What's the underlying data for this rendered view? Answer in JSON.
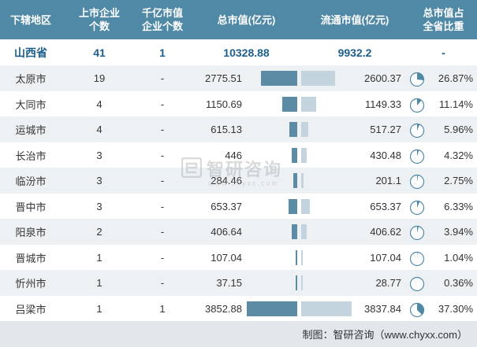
{
  "headers": [
    "下辖地区",
    "上市企业\n个数",
    "千亿市值\n企业个数",
    "总市值(亿元)",
    "流通市值(亿元)",
    "总市值占\n全省比重"
  ],
  "summary": {
    "region": "山西省",
    "listed": "41",
    "hundred_billion": "1",
    "total": "10328.88",
    "floating": "9932.2",
    "share": "-"
  },
  "rows": [
    {
      "region": "太原市",
      "listed": "19",
      "hundred_billion": "-",
      "total": "2775.51",
      "floating": "2600.37",
      "share": "26.87%"
    },
    {
      "region": "大同市",
      "listed": "4",
      "hundred_billion": "-",
      "total": "1150.69",
      "floating": "1149.33",
      "share": "11.14%"
    },
    {
      "region": "运城市",
      "listed": "4",
      "hundred_billion": "-",
      "total": "615.13",
      "floating": "517.27",
      "share": "5.96%"
    },
    {
      "region": "长治市",
      "listed": "3",
      "hundred_billion": "-",
      "total": "446",
      "floating": "430.48",
      "share": "4.32%"
    },
    {
      "region": "临汾市",
      "listed": "3",
      "hundred_billion": "-",
      "total": "284.46",
      "floating": "201.1",
      "share": "2.75%"
    },
    {
      "region": "晋中市",
      "listed": "3",
      "hundred_billion": "-",
      "total": "653.37",
      "floating": "653.37",
      "share": "6.33%"
    },
    {
      "region": "阳泉市",
      "listed": "2",
      "hundred_billion": "-",
      "total": "406.64",
      "floating": "406.62",
      "share": "3.94%"
    },
    {
      "region": "晋城市",
      "listed": "1",
      "hundred_billion": "-",
      "total": "107.04",
      "floating": "107.04",
      "share": "1.04%"
    },
    {
      "region": "忻州市",
      "listed": "1",
      "hundred_billion": "-",
      "total": "37.15",
      "floating": "28.77",
      "share": "0.36%"
    },
    {
      "region": "吕梁市",
      "listed": "1",
      "hundred_billion": "1",
      "total": "3852.88",
      "floating": "3837.84",
      "share": "37.30%"
    }
  ],
  "chart_data": {
    "type": "table",
    "columns": [
      "下辖地区",
      "上市企业个数",
      "千亿市值企业个数",
      "总市值(亿元)",
      "流通市值(亿元)",
      "总市值占全省比重"
    ],
    "categories": [
      "太原市",
      "大同市",
      "运城市",
      "长治市",
      "临汾市",
      "晋中市",
      "阳泉市",
      "晋城市",
      "忻州市",
      "吕梁市"
    ],
    "series": [
      {
        "name": "总市值(亿元)",
        "values": [
          2775.51,
          1150.69,
          615.13,
          446,
          284.46,
          653.37,
          406.64,
          107.04,
          37.15,
          3852.88
        ]
      },
      {
        "name": "流通市值(亿元)",
        "values": [
          2600.37,
          1149.33,
          517.27,
          430.48,
          201.1,
          653.37,
          406.62,
          107.04,
          28.77,
          3837.84
        ]
      },
      {
        "name": "总市值占全省比重",
        "values": [
          26.87,
          11.14,
          5.96,
          4.32,
          2.75,
          6.33,
          3.94,
          1.04,
          0.36,
          37.3
        ]
      }
    ],
    "bar_max": 3852.88,
    "colors": {
      "header": "#4f89a6",
      "total_bar": "#5b8ba5",
      "floating_bar": "#c4d4de",
      "pie": "#4f89a6",
      "summary_text": "#1d5f8a"
    }
  },
  "watermark": {
    "name": "智研咨询",
    "url": "www.chyxx.com"
  },
  "footer": "制图：智研咨询（www.chyxx.com）"
}
